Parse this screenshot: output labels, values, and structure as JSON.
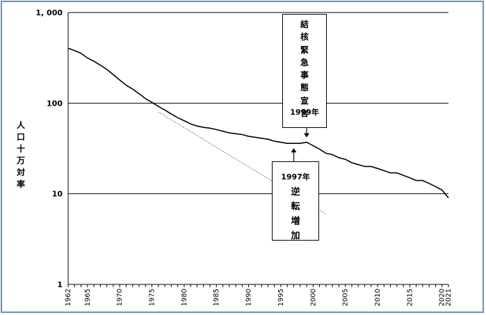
{
  "chart_data": {
    "type": "line",
    "ylabel": "人\n口\n十\n万\n対\n率",
    "xlabel": "",
    "y_scale": "log",
    "ylim": [
      1,
      1000
    ],
    "y_ticks": [
      1,
      10,
      100,
      1000
    ],
    "y_tick_labels": [
      "1",
      "10",
      "100",
      "1, 000"
    ],
    "xlim": [
      1962,
      2021
    ],
    "x_tick_labels": [
      "1962",
      "1965",
      "1970",
      "1975",
      "1980",
      "1985",
      "1990",
      "1995",
      "2000",
      "2005",
      "2010",
      "2015",
      "2020",
      "2021"
    ],
    "x_ticks": [
      1962,
      1965,
      1970,
      1975,
      1980,
      1985,
      1990,
      1995,
      2000,
      2005,
      2010,
      2015,
      2020,
      2021
    ],
    "grid": "horizontal",
    "series": [
      {
        "style": "solid",
        "color": "#000000",
        "x": [
          1962,
          1963,
          1964,
          1965,
          1966,
          1967,
          1968,
          1969,
          1970,
          1971,
          1972,
          1973,
          1974,
          1975,
          1976,
          1977,
          1978,
          1979,
          1980,
          1981,
          1982,
          1983,
          1984,
          1985,
          1986,
          1987,
          1988,
          1989,
          1990,
          1991,
          1992,
          1993,
          1994,
          1995,
          1996,
          1997,
          1998,
          1999,
          2000,
          2001,
          2002,
          2003,
          2004,
          2005,
          2006,
          2007,
          2008,
          2009,
          2010,
          2011,
          2012,
          2013,
          2014,
          2015,
          2016,
          2017,
          2018,
          2019,
          2020,
          2021
        ],
        "y": [
          403,
          380,
          355,
          315,
          290,
          262,
          236,
          206,
          180,
          158,
          143,
          127,
          112,
          102,
          92,
          84,
          76,
          69,
          64,
          59,
          56,
          54,
          53,
          51,
          49,
          47,
          46,
          45,
          43,
          42,
          41,
          40,
          38,
          37,
          36,
          36,
          36,
          37,
          34,
          31,
          28,
          27,
          25,
          24,
          22,
          21,
          20,
          20,
          19,
          18,
          17,
          17,
          16,
          15,
          14,
          14,
          13,
          12,
          11,
          9
        ]
      },
      {
        "style": "dotted",
        "color": "#555555",
        "x": [
          1976,
          2002
        ],
        "y": [
          80,
          6
        ]
      }
    ],
    "annotations": [
      {
        "id": "a1999",
        "text": "結\n核\n緊\n急\n事\n態\n宣\n言",
        "year_label": "1999年",
        "points_to": {
          "x": 1999,
          "y": 37
        }
      },
      {
        "id": "a1997",
        "text": "逆\n転\n増\n加",
        "year_label": "1997年",
        "points_to": {
          "x": 1997,
          "y": 36
        }
      }
    ]
  }
}
